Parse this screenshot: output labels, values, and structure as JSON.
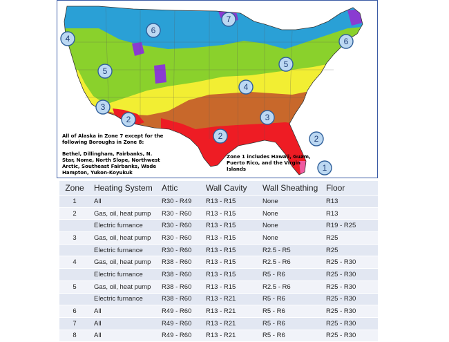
{
  "map": {
    "zone_labels": [
      "1",
      "2",
      "2",
      "2",
      "3",
      "3",
      "4",
      "4",
      "5",
      "5",
      "6",
      "6",
      "7"
    ],
    "alaska_note": "All of Alaska in Zone 7 except for the following Boroughs in Zone 8:",
    "alaska_boroughs": "Bethel, Dillingham, Fairbanks, N. Star, Nome, North Slope, Northwest Arctic, Southeast Fairbanks, Wade Hampton, Yukon-Koyukuk",
    "zone1_note": "Zone 1 includes Hawaii, Guam, Puerto Rico, and the Virgin Islands",
    "colors": {
      "zone1": "#f05aa0",
      "zone2": "#ee1c24",
      "zone3": "#c8682b",
      "zone4": "#f2ee33",
      "zone5": "#8ad12c",
      "zone6": "#2aa0d6",
      "zone7": "#8a3bd1",
      "water": "#ffffff"
    }
  },
  "table": {
    "headers": [
      "Zone",
      "Heating System",
      "Attic",
      "Wall Cavity",
      "Wall Sheathing",
      "Floor"
    ],
    "rows": [
      [
        "1",
        "All",
        "R30 - R49",
        "R13 - R15",
        "None",
        "R13"
      ],
      [
        "2",
        "Gas, oil, heat pump",
        "R30 - R60",
        "R13 - R15",
        "None",
        "R13"
      ],
      [
        "",
        "Electric furnance",
        "R30 - R60",
        "R13 - R15",
        "None",
        "R19 - R25"
      ],
      [
        "3",
        "Gas, oil, heat pump",
        "R30 - R60",
        "R13 - R15",
        "None",
        "R25"
      ],
      [
        "",
        "Electric furnance",
        "R30 - R60",
        "R13 - R15",
        "R2.5 - R5",
        "R25"
      ],
      [
        "4",
        "Gas, oil, heat pump",
        "R38 - R60",
        "R13 - R15",
        "R2.5 - R6",
        "R25 - R30"
      ],
      [
        "",
        "Electric furnance",
        "R38 - R60",
        "R13 - R15",
        "R5 - R6",
        "R25 - R30"
      ],
      [
        "5",
        "Gas, oil, heat pump",
        "R38 - R60",
        "R13 - R15",
        "R2.5 - R6",
        "R25 - R30"
      ],
      [
        "",
        "Electric furnance",
        "R38 - R60",
        "R13 - R21",
        "R5 - R6",
        "R25 - R30"
      ],
      [
        "6",
        "All",
        "R49 - R60",
        "R13 - R21",
        "R5 - R6",
        "R25 - R30"
      ],
      [
        "7",
        "All",
        "R49 - R60",
        "R13 - R21",
        "R5 - R6",
        "R25 - R30"
      ],
      [
        "8",
        "All",
        "R49 - R60",
        "R13 - R21",
        "R5 - R6",
        "R25 - R30"
      ]
    ]
  }
}
